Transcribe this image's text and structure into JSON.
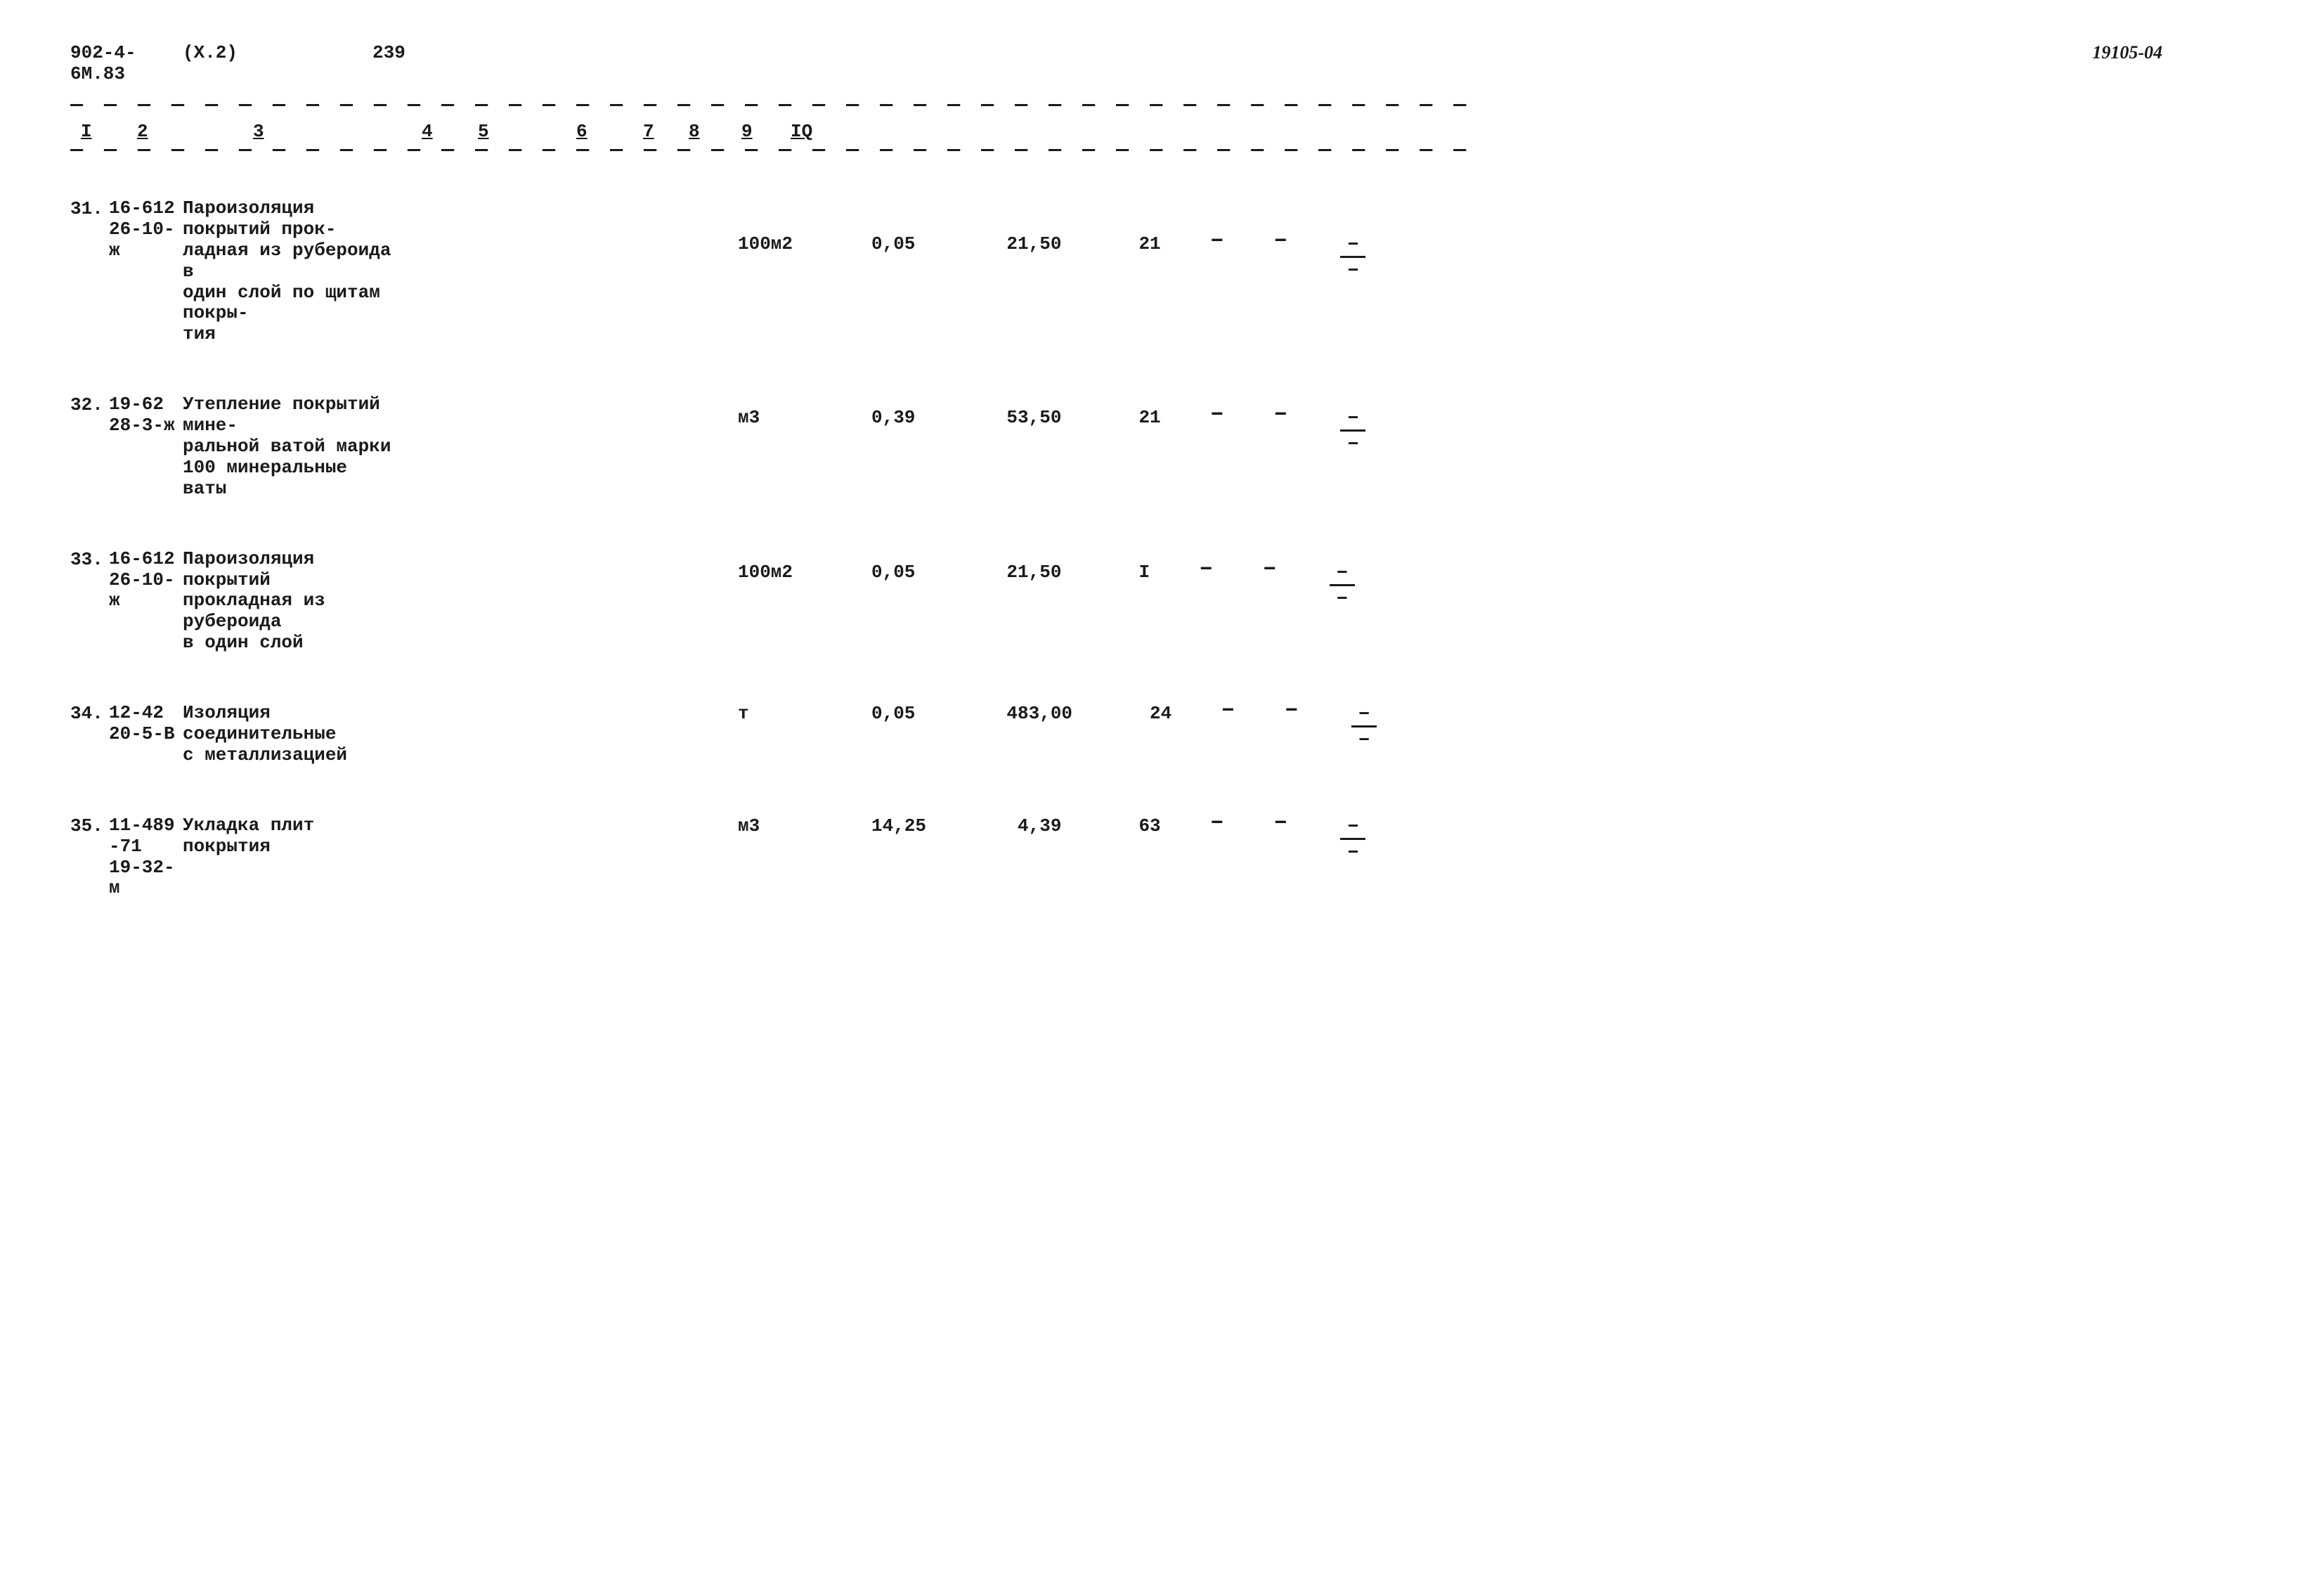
{
  "header": {
    "left": "902-4-6М.83",
    "version": "(X.2)",
    "page": "239",
    "right": "19105-04"
  },
  "columns": {
    "c1": "I",
    "c2": "2",
    "c3": "3",
    "c4": "4",
    "c5": "5",
    "c6": "6",
    "c7": "7",
    "c8": "8",
    "c9": "9",
    "c10": "IQ"
  },
  "columnPositions": {
    "c1": 15,
    "c2": 95,
    "c3": 260,
    "c4": 500,
    "c5": 580,
    "c6": 720,
    "c7": 815,
    "c8": 880,
    "c9": 955,
    "c10": 1025
  },
  "dashLine": "— — — — — — — — — — — — — — — — — — — — — — — — — — — — — — — — — — — — — — — — — —",
  "rows": [
    {
      "num": "31.",
      "code": "16-612\n26-10-ж",
      "desc": "Пароизоляция покрытий прок-\nладная из  рубероида в\nодин слой по щитам покры-\nтия",
      "unit": "100м2",
      "v5": "0,05",
      "v6": "21,50",
      "v7": "21",
      "v8": "–",
      "v9": "–",
      "valign": "row-valign"
    },
    {
      "num": "32.",
      "code": "19-62\n28-3-ж",
      "desc": "Утепление покрытий мине-\nральной ватой марки\n100 минеральные ваты",
      "unit": "м3",
      "v5": "0,39",
      "v6": "53,50",
      "v7": "21",
      "v8": "–",
      "v9": "–",
      "valign": "row-valign-short"
    },
    {
      "num": "33.",
      "code": "16-612\n26-10-ж",
      "desc": "Пароизоляция покрытий\nпрокладная из рубероида\nв один слой",
      "unit": "100м2",
      "v5": "0,05",
      "v6": "21,50",
      "v7": "I",
      "v8": "–",
      "v9": "–",
      "valign": "row-valign-short"
    },
    {
      "num": "34.",
      "code": "12-42\n20-5-В",
      "desc": "Изоляция соединительные\nс металлизацией",
      "unit": "т",
      "v5": "0,05",
      "v6": "483,00",
      "v7": "24",
      "v8": "–",
      "v9": "–",
      "valign": "row-valign-single"
    },
    {
      "num": "35.",
      "code": "11-489\n-71\n19-32-м",
      "desc": "Укладка плит покрытия",
      "unit": "м3",
      "v5": "14,25",
      "v6": "4,39",
      "v7": "63",
      "v8": "–",
      "v9": "–",
      "valign": "row-valign-single"
    }
  ],
  "styling": {
    "fontFamily": "Courier New",
    "fontWeight": "bold",
    "textColor": "#1a1a1a",
    "backgroundColor": "#ffffff",
    "baseFontSize": 26
  }
}
